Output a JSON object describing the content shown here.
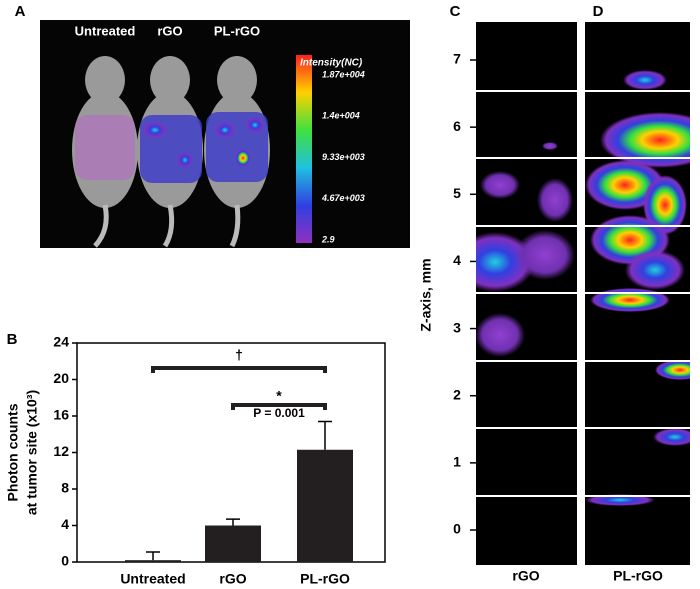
{
  "panel_labels": [
    "A",
    "B",
    "C",
    "D"
  ],
  "imaging": {
    "groups": [
      "Untreated",
      "rGO",
      "PL-rGO"
    ],
    "colorbar_title": "Intensity(NC)",
    "colorbar_ticks": [
      "1.87e+004",
      "1.4e+004",
      "9.33e+003",
      "4.67e+003",
      "2.9"
    ]
  },
  "chart_data": {
    "type": "bar",
    "categories": [
      "Untreated",
      "rGO",
      "PL-rGO"
    ],
    "values": [
      0.2,
      4.0,
      12.3
    ],
    "errors": [
      0.9,
      0.7,
      3.1
    ],
    "color": "#231f20",
    "ylim": [
      0,
      24
    ],
    "yticks": [
      0,
      4,
      8,
      12,
      16,
      20,
      24
    ],
    "y_label": [
      "Photon counts",
      "at tumor site  (x10³)"
    ],
    "annotations": [
      "†",
      "*",
      "P = 0.001"
    ]
  },
  "z_stack": {
    "axis_label": "Z-axis, mm",
    "ticks": [
      7,
      6,
      5,
      4,
      3,
      2,
      1,
      0
    ],
    "columns": [
      "rGO",
      "PL-rGO"
    ]
  }
}
